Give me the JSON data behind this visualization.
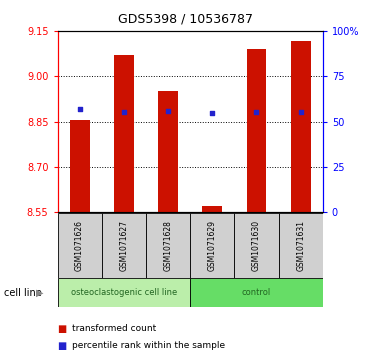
{
  "title": "GDS5398 / 10536787",
  "samples": [
    "GSM1071626",
    "GSM1071627",
    "GSM1071628",
    "GSM1071629",
    "GSM1071630",
    "GSM1071631"
  ],
  "bar_bottoms": [
    8.55,
    8.55,
    8.55,
    8.55,
    8.55,
    8.55
  ],
  "bar_tops": [
    8.855,
    9.07,
    8.95,
    8.572,
    9.09,
    9.115
  ],
  "percentile_values": [
    8.892,
    8.883,
    8.884,
    8.878,
    8.882,
    8.883
  ],
  "ylim_left": [
    8.55,
    9.15
  ],
  "ylim_right": [
    0,
    100
  ],
  "yticks_left": [
    8.55,
    8.7,
    8.85,
    9.0,
    9.15
  ],
  "yticks_right": [
    0,
    25,
    50,
    75,
    100
  ],
  "ytick_labels_right": [
    "0",
    "25",
    "50",
    "75",
    "100%"
  ],
  "bar_color": "#CC1100",
  "square_color": "#2222CC",
  "groups": [
    {
      "label": "osteoclastogenic cell line",
      "samples": [
        0,
        1,
        2
      ],
      "color": "#AADDAA"
    },
    {
      "label": "control",
      "samples": [
        3,
        4,
        5
      ],
      "color": "#55CC55"
    }
  ],
  "cell_line_label": "cell line",
  "legend_items": [
    "transformed count",
    "percentile rank within the sample"
  ],
  "legend_colors": [
    "#CC1100",
    "#2222CC"
  ],
  "bar_width": 0.45,
  "figsize": [
    3.71,
    3.63
  ],
  "dpi": 100
}
